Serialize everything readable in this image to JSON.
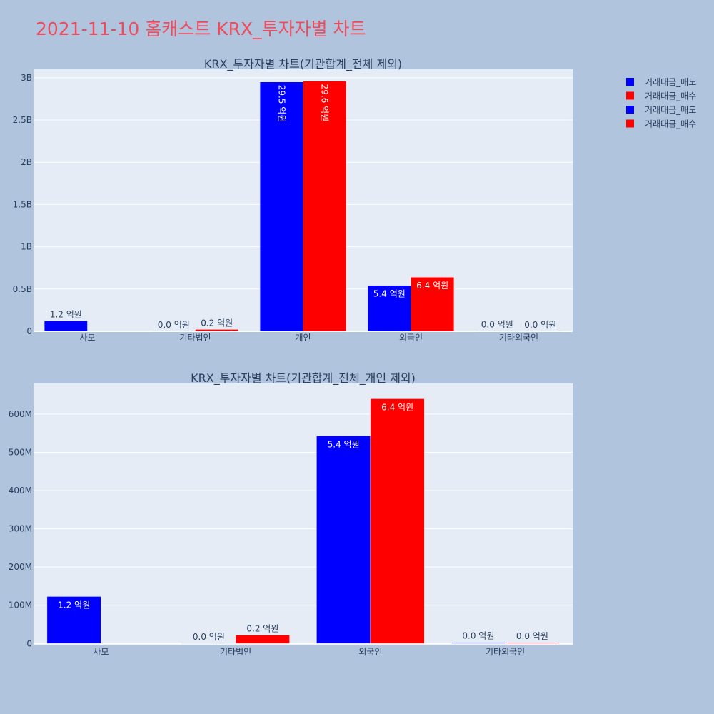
{
  "page_title": "2021-11-10 홈캐스트 KRX_투자자별 차트",
  "colors": {
    "background": "#b0c4de",
    "plot_bg": "#e5ecf6",
    "title": "#ef4b5c",
    "text": "#2a3f5f",
    "sell": "#0000ff",
    "buy": "#ff0000"
  },
  "legend": {
    "placement": "top-right",
    "items": [
      {
        "label": "거래대금_매도",
        "color": "#0000ff"
      },
      {
        "label": "거래대금_매수",
        "color": "#ff0000"
      },
      {
        "label": "거래대금_매도",
        "color": "#0000ff"
      },
      {
        "label": "거래대금_매수",
        "color": "#ff0000"
      }
    ]
  },
  "chart_data": [
    {
      "type": "bar",
      "title": "KRX_투자자별 차트(기관합계_전체 제외)",
      "categories": [
        "사모",
        "기타법인",
        "개인",
        "외국인",
        "기타외국인"
      ],
      "ylim": [
        0,
        3100000000
      ],
      "yticks": [
        0,
        500000000,
        1000000000,
        1500000000,
        2000000000,
        2500000000,
        3000000000
      ],
      "ytick_labels": [
        "0",
        "0.5B",
        "1B",
        "1.5B",
        "2B",
        "2.5B",
        "3B"
      ],
      "grid": true,
      "series": [
        {
          "name": "거래대금_매도",
          "color": "#0000ff",
          "values": [
            123000000,
            1000000,
            2950000000,
            543000000,
            3000000
          ],
          "labels": [
            "1.2 억원",
            "0.0 억원",
            "29.5 억원",
            "5.4 억원",
            "0.0 억원"
          ]
        },
        {
          "name": "거래대금_매수",
          "color": "#ff0000",
          "values": [
            0,
            22000000,
            2960000000,
            640000000,
            2000000
          ],
          "labels": [
            "",
            "0.2 억원",
            "29.6 억원",
            "6.4 억원",
            "0.0 억원"
          ]
        }
      ]
    },
    {
      "type": "bar",
      "title": "KRX_투자자별 차트(기관합계_전체_개인 제외)",
      "categories": [
        "사모",
        "기타법인",
        "외국인",
        "기타외국인"
      ],
      "ylim": [
        -5000000,
        680000000
      ],
      "yticks": [
        0,
        100000000,
        200000000,
        300000000,
        400000000,
        500000000,
        600000000
      ],
      "ytick_labels": [
        "0",
        "100M",
        "200M",
        "300M",
        "400M",
        "500M",
        "600M"
      ],
      "grid": true,
      "series": [
        {
          "name": "거래대금_매도",
          "color": "#0000ff",
          "values": [
            123000000,
            1000000,
            543000000,
            3000000
          ],
          "labels": [
            "1.2 억원",
            "0.0 억원",
            "5.4 억원",
            "0.0 억원"
          ]
        },
        {
          "name": "거래대금_매수",
          "color": "#ff0000",
          "values": [
            0,
            22000000,
            640000000,
            2000000
          ],
          "labels": [
            "",
            "0.2 억원",
            "6.4 억원",
            "0.0 억원"
          ]
        }
      ]
    }
  ]
}
